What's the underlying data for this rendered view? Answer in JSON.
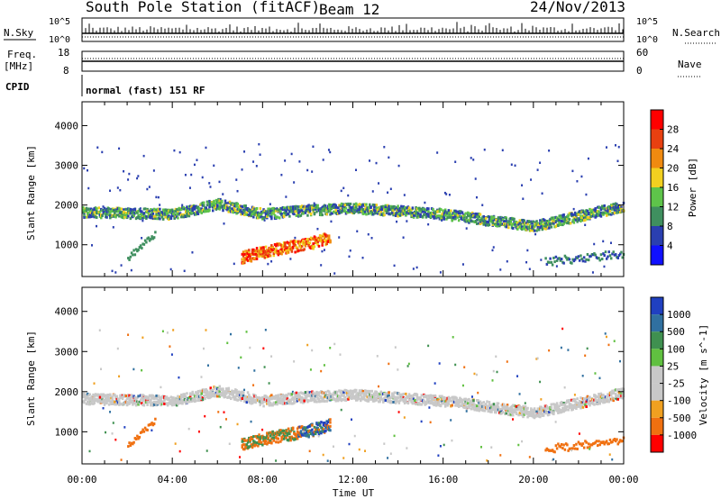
{
  "header": {
    "station": "South Pole Station (fitACF)",
    "beam": "Beam 12",
    "date": "24/Nov/2013"
  },
  "top_panel": {
    "nsky_label": "N.Sky",
    "nsearch_label": "N.Search",
    "nsky_ticks": [
      "10^5",
      "10^0"
    ],
    "nsearch_ticks": [
      "10^5",
      "10^0"
    ],
    "freq_label": "Freq.",
    "freq_unit": "[MHz]",
    "freq_ticks": [
      "18",
      "8"
    ],
    "nave_label": "Nave",
    "nave_ticks": [
      "60",
      "0"
    ],
    "cpid_label": "CPID",
    "cpid_text": "normal (fast) 151 RF"
  },
  "chart_data": [
    {
      "type": "heatmap",
      "name": "power-panel",
      "ylabel": "Slant Range [km]",
      "xlabel": "",
      "ylim": [
        200,
        4600
      ],
      "y_ticks": [
        1000,
        2000,
        3000,
        4000
      ],
      "colorbar_label": "Power [dB]",
      "colorbar_ticks": [
        "4",
        "8",
        "12",
        "16",
        "20",
        "24",
        "28"
      ],
      "colorbar_colors": [
        "#1010ff",
        "#2a3fb0",
        "#3f8f5f",
        "#5ec44a",
        "#f2d020",
        "#f08a10",
        "#e84010",
        "#ff0000"
      ],
      "features": [
        {
          "label": "main-band",
          "t_hours": [
            0,
            4,
            6,
            8,
            10,
            12,
            16,
            20,
            24
          ],
          "range_km": [
            1850,
            1800,
            2050,
            1800,
            1900,
            1950,
            1800,
            1500,
            2000
          ]
        },
        {
          "label": "strong-echo",
          "t_hours": [
            7,
            8,
            9,
            10,
            11
          ],
          "range_km": [
            700,
            850,
            950,
            1050,
            1200
          ]
        }
      ]
    },
    {
      "type": "heatmap",
      "name": "velocity-panel",
      "ylabel": "Slant Range [km]",
      "xlabel": "Time UT",
      "ylim": [
        200,
        4600
      ],
      "y_ticks": [
        1000,
        2000,
        3000,
        4000
      ],
      "x_ticks": [
        "00:00",
        "04:00",
        "08:00",
        "12:00",
        "16:00",
        "20:00",
        "00:00"
      ],
      "colorbar_label": "Velocity [m s^-1]",
      "colorbar_ticks": [
        "1000",
        "500",
        "100",
        "25",
        "-25",
        "-100",
        "-500",
        "-1000"
      ],
      "colorbar_colors": [
        "#2040c0",
        "#3070a0",
        "#3f9050",
        "#60c040",
        "#c8c8c8",
        "#c8c8c8",
        "#f0a020",
        "#f07010",
        "#ff0000"
      ]
    }
  ]
}
